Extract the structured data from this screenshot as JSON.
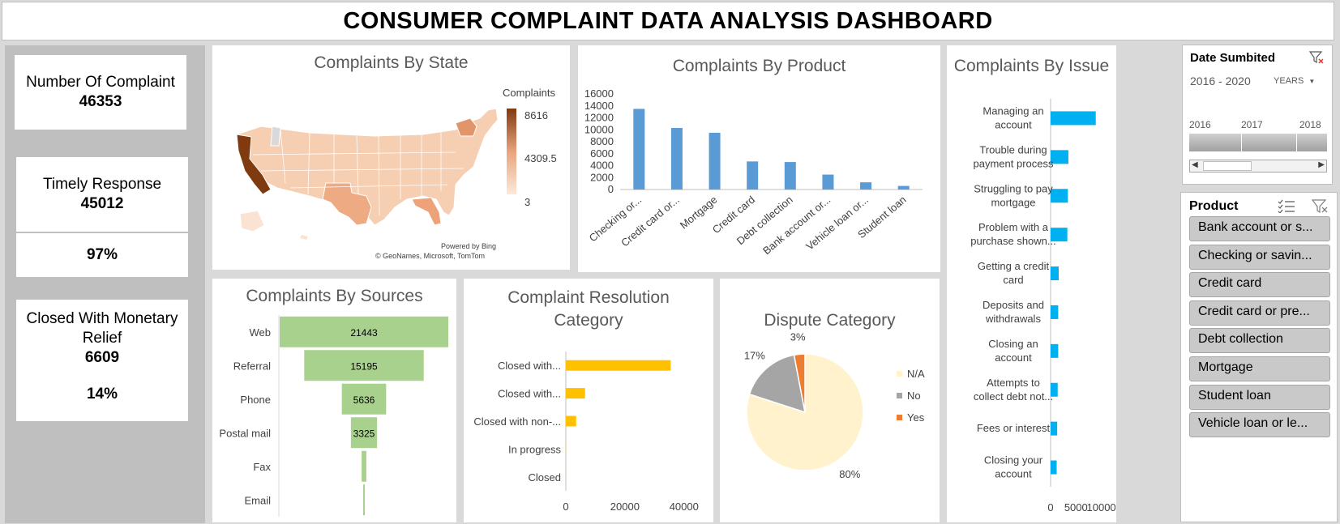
{
  "title": "CONSUMER COMPLAINT DATA ANALYSIS DASHBOARD",
  "kpis": {
    "complaints_label": "Number Of Complaint",
    "complaints_value": "46353",
    "timely_label": "Timely Response",
    "timely_value": "45012",
    "timely_pct": "97%",
    "relief_label": "Closed With Monetary Relief",
    "relief_value": "6609",
    "relief_pct": "14%"
  },
  "state_map": {
    "title": "Complaints By State",
    "legend_title": "Complaints",
    "legend_max": "8616",
    "legend_mid": "4309.5",
    "legend_min": "3",
    "attribution_1": "Powered by Bing",
    "attribution_2": "© GeoNames, Microsoft, TomTom",
    "colors": {
      "high": "#7f3a10",
      "low": "#fce9dc"
    }
  },
  "product_chart": {
    "title": "Complaints By Product",
    "color": "#5b9bd5"
  },
  "sources_chart": {
    "title": "Complaints By Sources",
    "color": "#a9d18e"
  },
  "resolution_chart": {
    "title_line1": "Complaint Resolution",
    "title_line2": "Category",
    "color": "#ffc000"
  },
  "dispute_chart": {
    "title": "Dispute Category",
    "colors": [
      "#fff2cc",
      "#a5a5a5",
      "#ed7d31"
    ]
  },
  "issue_chart": {
    "title": "Complaints By Issue",
    "color": "#00b0f0"
  },
  "date_slicer": {
    "title": "Date Sumbited",
    "range": "2016 - 2020",
    "level": "YEARS",
    "years": [
      "2016",
      "2017",
      "2018"
    ]
  },
  "product_slicer": {
    "title": "Product",
    "items": [
      "Bank account or s...",
      "Checking or savin...",
      "Credit card",
      "Credit card or pre...",
      "Debt collection",
      "Mortgage",
      "Student loan",
      "Vehicle loan or le..."
    ]
  },
  "chart_data": [
    {
      "type": "bar",
      "title": "Complaints By Product",
      "categories": [
        "Checking or...",
        "Credit card or...",
        "Mortgage",
        "Credit card",
        "Debt collection",
        "Bank account or...",
        "Vehicle loan or...",
        "Student loan"
      ],
      "values": [
        13500,
        10300,
        9500,
        4700,
        4600,
        2500,
        1200,
        600
      ],
      "yticks": [
        "16000",
        "14000",
        "12000",
        "10000",
        "8000",
        "6000",
        "4000",
        "2000",
        "0"
      ],
      "ylim": [
        0,
        16000
      ]
    },
    {
      "type": "bar",
      "title": "Complaints By Sources",
      "categories": [
        "Web",
        "Referral",
        "Phone",
        "Postal mail",
        "Fax",
        "Email"
      ],
      "values": [
        21443,
        15195,
        5636,
        3325,
        600,
        100
      ],
      "labels": [
        "21443",
        "15195",
        "5636",
        "3325",
        "",
        ""
      ]
    },
    {
      "type": "bar",
      "title": "Complaint Resolution Category",
      "categories": [
        "Closed with...",
        "Closed with...",
        "Closed with non-...",
        "In progress",
        "Closed"
      ],
      "values": [
        35500,
        6500,
        3500,
        50,
        20
      ],
      "xticks": [
        "0",
        "20000",
        "40000"
      ],
      "xlim": [
        0,
        45000
      ]
    },
    {
      "type": "pie",
      "title": "Dispute Category",
      "categories": [
        "N/A",
        "No",
        "Yes"
      ],
      "values": [
        80,
        17,
        3
      ],
      "labels": [
        "80%",
        "17%",
        "3%"
      ]
    },
    {
      "type": "bar",
      "title": "Complaints By Issue",
      "categories": [
        [
          "Managing an",
          "account"
        ],
        [
          "Trouble during",
          "payment process"
        ],
        [
          "Struggling to pay",
          "mortgage"
        ],
        [
          "Problem with a",
          "purchase shown..."
        ],
        [
          "Getting a credit",
          "card"
        ],
        [
          "Deposits and",
          "withdrawals"
        ],
        [
          "Closing an",
          "account"
        ],
        [
          "Attempts to",
          "collect debt not..."
        ],
        [
          "Fees or interest"
        ],
        [
          "Closing your",
          "account"
        ]
      ],
      "values": [
        8900,
        3500,
        3400,
        3300,
        1600,
        1500,
        1500,
        1400,
        1300,
        1200
      ],
      "xticks": [
        "0",
        "5000",
        "10000"
      ],
      "xlim": [
        0,
        11500
      ]
    }
  ]
}
